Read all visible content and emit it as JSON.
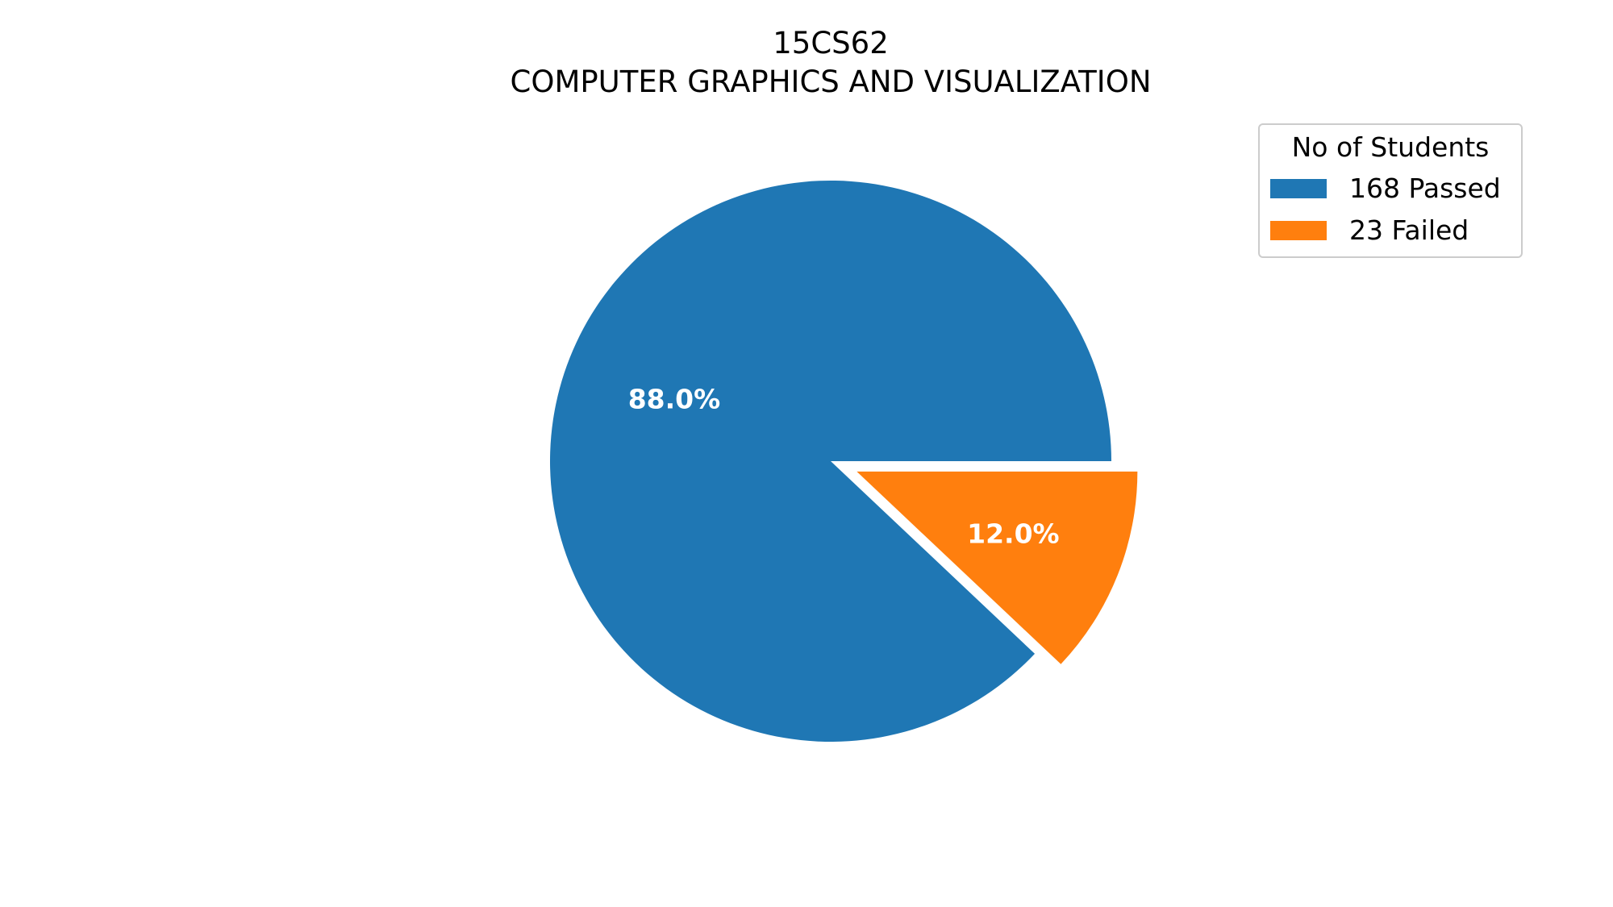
{
  "chart_data": {
    "type": "pie",
    "title": "15CS62",
    "subtitle": "COMPUTER GRAPHICS AND VISUALIZATION",
    "slices": [
      {
        "label": "168 Passed",
        "value": 168,
        "percent_label": "88.0%",
        "color": "#1f77b4",
        "exploded": false
      },
      {
        "label": "23 Failed",
        "value": 23,
        "percent_label": "12.0%",
        "color": "#ff7f0e",
        "exploded": true
      }
    ],
    "legend": {
      "title": "No of Students",
      "placement": "top-right"
    }
  }
}
